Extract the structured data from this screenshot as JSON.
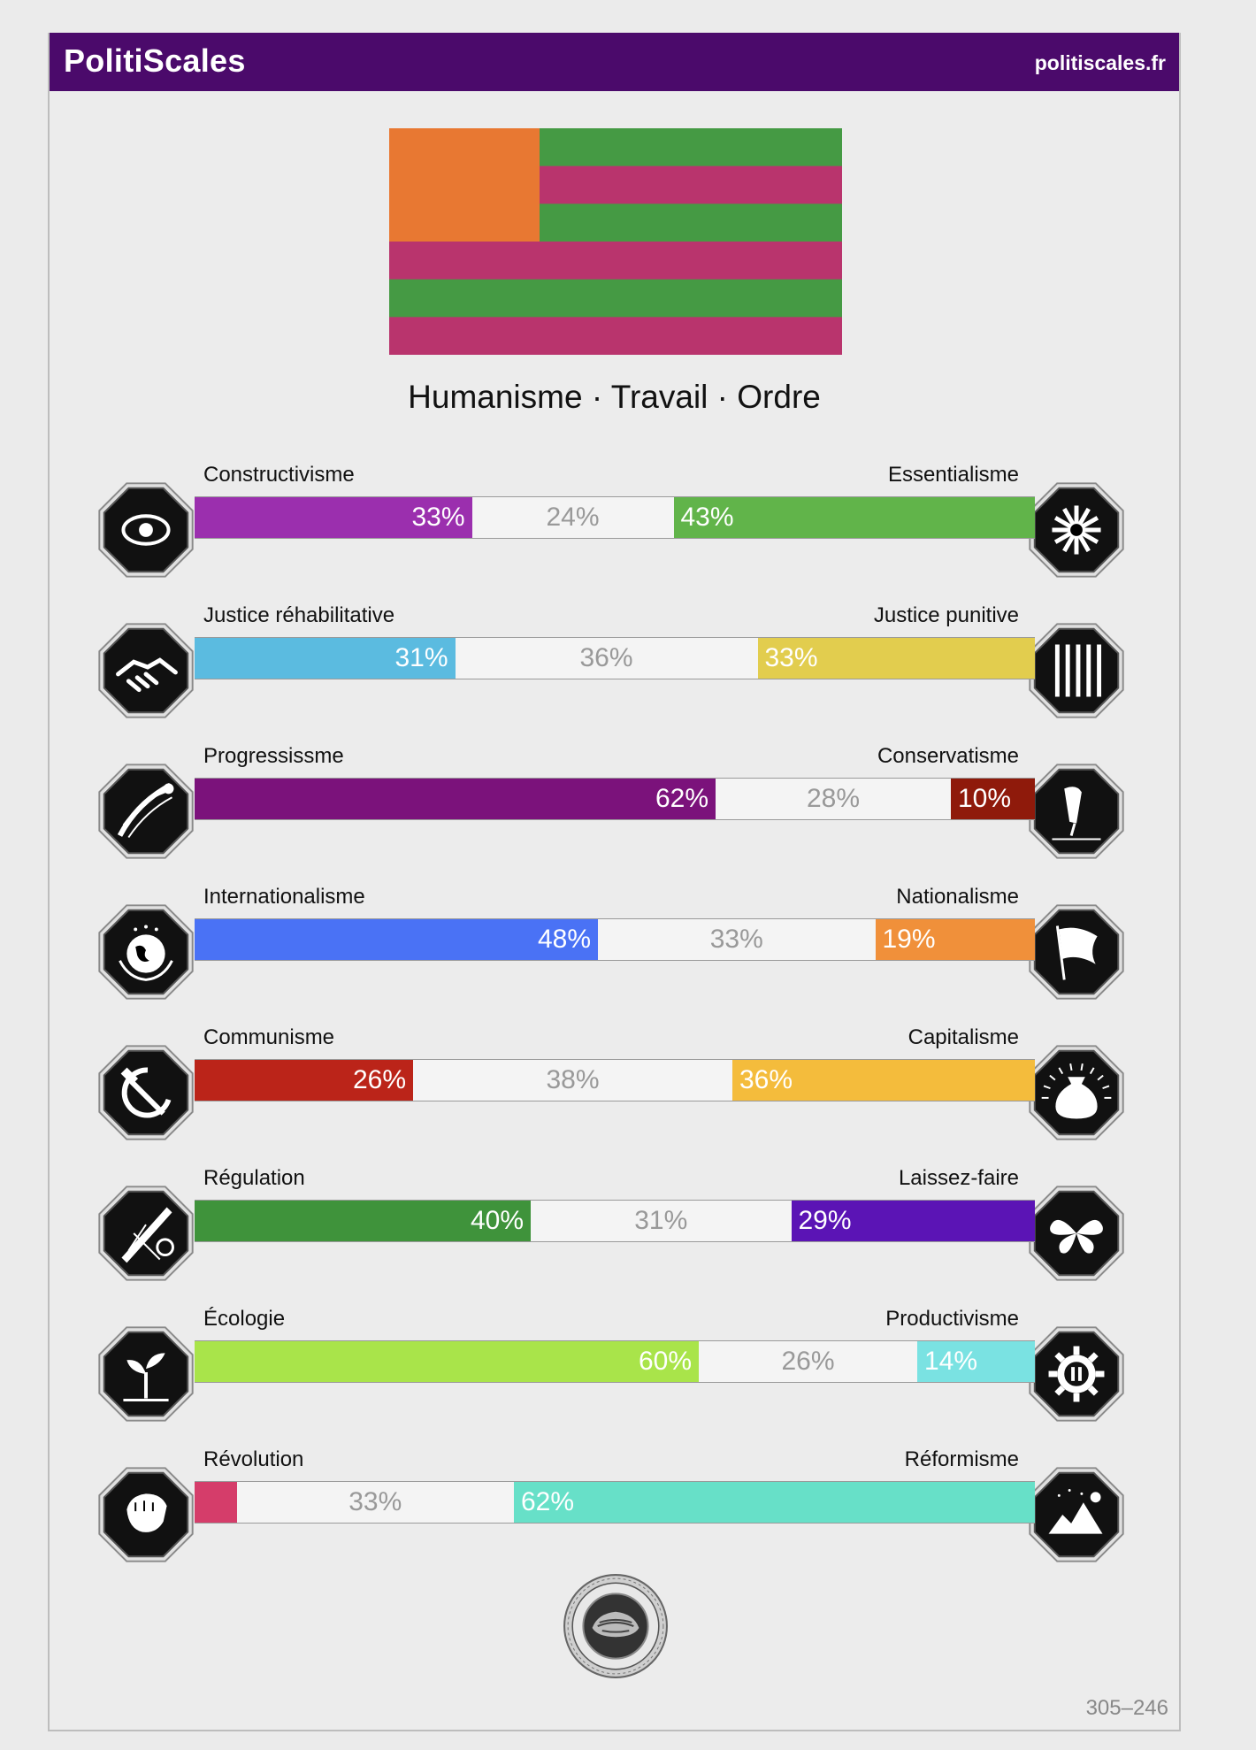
{
  "header": {
    "brand": "PolitiScales",
    "site": "politiscales.fr"
  },
  "flag": {
    "canton_color": "#e87832",
    "stripe_colors": [
      "#459a44",
      "#b9346d",
      "#459a44",
      "#b9346d",
      "#459a44",
      "#b9346d"
    ]
  },
  "motto": "Humanisme · Travail · Ordre",
  "axes": [
    {
      "left_label": "Constructivisme",
      "right_label": "Essentialisme",
      "left_value": 33,
      "middle_value": 24,
      "right_value": 43,
      "left_text": "33%",
      "middle_text": "24%",
      "right_text": "43%",
      "left_color": "#9b2fae",
      "right_color": "#61b44a",
      "left_icon": "eye-icon",
      "right_icon": "flower-icon"
    },
    {
      "left_label": "Justice réhabilitative",
      "right_label": "Justice punitive",
      "left_value": 31,
      "middle_value": 36,
      "right_value": 33,
      "left_text": "31%",
      "middle_text": "36%",
      "right_text": "33%",
      "left_color": "#5bbbe0",
      "right_color": "#e2cd4e",
      "left_icon": "handshake-icon",
      "right_icon": "prison-bars-icon"
    },
    {
      "left_label": "Progressissme",
      "right_label": "Conservatisme",
      "left_value": 62,
      "middle_value": 28,
      "right_value": 10,
      "left_text": "62%",
      "middle_text": "28%",
      "right_text": "10%",
      "left_color": "#7b127b",
      "right_color": "#8f1a0b",
      "left_icon": "comet-icon",
      "right_icon": "quill-icon"
    },
    {
      "left_label": "Internationalisme",
      "right_label": "Nationalisme",
      "left_value": 48,
      "middle_value": 33,
      "right_value": 19,
      "left_text": "48%",
      "middle_text": "33%",
      "right_text": "19%",
      "left_color": "#4a72f5",
      "right_color": "#f0903a",
      "left_icon": "globe-icon",
      "right_icon": "flag-icon"
    },
    {
      "left_label": "Communisme",
      "right_label": "Capitalisme",
      "left_value": 26,
      "middle_value": 38,
      "right_value": 36,
      "left_text": "26%",
      "middle_text": "38%",
      "right_text": "36%",
      "left_color": "#bb2419",
      "right_color": "#f4bc3c",
      "left_icon": "hammer-sickle-icon",
      "right_icon": "money-bag-icon"
    },
    {
      "left_label": "Régulation",
      "right_label": "Laissez-faire",
      "left_value": 40,
      "middle_value": 31,
      "right_value": 29,
      "left_text": "40%",
      "middle_text": "31%",
      "right_text": "29%",
      "left_color": "#3f933b",
      "right_color": "#5b14b5",
      "left_icon": "ruler-icon",
      "right_icon": "butterfly-icon"
    },
    {
      "left_label": "Écologie",
      "right_label": "Productivisme",
      "left_value": 60,
      "middle_value": 26,
      "right_value": 14,
      "left_text": "60%",
      "middle_text": "26%",
      "right_text": "14%",
      "left_color": "#a9e44a",
      "right_color": "#7ae2e2",
      "left_icon": "sprout-icon",
      "right_icon": "gear-icon"
    },
    {
      "left_label": "Révolution",
      "right_label": "Réformisme",
      "left_value": 5,
      "middle_value": 33,
      "right_value": 62,
      "left_text": "",
      "middle_text": "33%",
      "right_text": "62%",
      "left_color": "#d53d6a",
      "right_color": "#67e0c8",
      "left_icon": "fist-icon",
      "right_icon": "landscape-icon"
    }
  ],
  "seal": {
    "icon": "seal-icon"
  },
  "footer_code": "305–246"
}
